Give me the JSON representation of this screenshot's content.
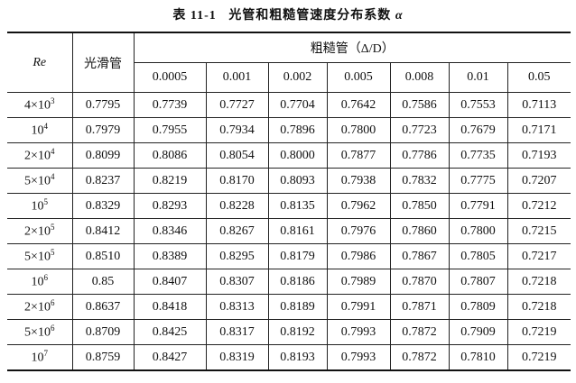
{
  "title": {
    "label": "表 11-1",
    "text": "光管和粗糙管速度分布系数",
    "symbol": "α"
  },
  "header": {
    "re": "Re",
    "smooth": "光滑管",
    "rough": "粗糙管（Δ/D）",
    "roughness": [
      "0.0005",
      "0.001",
      "0.002",
      "0.005",
      "0.008",
      "0.01",
      "0.05"
    ]
  },
  "rows": [
    {
      "re_coef": "4×10",
      "re_exp": "3",
      "values": [
        "0.7795",
        "0.7739",
        "0.7727",
        "0.7704",
        "0.7642",
        "0.7586",
        "0.7553",
        "0.7113"
      ]
    },
    {
      "re_coef": "10",
      "re_exp": "4",
      "values": [
        "0.7979",
        "0.7955",
        "0.7934",
        "0.7896",
        "0.7800",
        "0.7723",
        "0.7679",
        "0.7171"
      ]
    },
    {
      "re_coef": "2×10",
      "re_exp": "4",
      "values": [
        "0.8099",
        "0.8086",
        "0.8054",
        "0.8000",
        "0.7877",
        "0.7786",
        "0.7735",
        "0.7193"
      ]
    },
    {
      "re_coef": "5×10",
      "re_exp": "4",
      "values": [
        "0.8237",
        "0.8219",
        "0.8170",
        "0.8093",
        "0.7938",
        "0.7832",
        "0.7775",
        "0.7207"
      ]
    },
    {
      "re_coef": "10",
      "re_exp": "5",
      "values": [
        "0.8329",
        "0.8293",
        "0.8228",
        "0.8135",
        "0.7962",
        "0.7850",
        "0.7791",
        "0.7212"
      ]
    },
    {
      "re_coef": "2×10",
      "re_exp": "5",
      "values": [
        "0.8412",
        "0.8346",
        "0.8267",
        "0.8161",
        "0.7976",
        "0.7860",
        "0.7800",
        "0.7215"
      ]
    },
    {
      "re_coef": "5×10",
      "re_exp": "5",
      "values": [
        "0.8510",
        "0.8389",
        "0.8295",
        "0.8179",
        "0.7986",
        "0.7867",
        "0.7805",
        "0.7217"
      ]
    },
    {
      "re_coef": "10",
      "re_exp": "6",
      "values": [
        "0.85",
        "0.8407",
        "0.8307",
        "0.8186",
        "0.7989",
        "0.7870",
        "0.7807",
        "0.7218"
      ]
    },
    {
      "re_coef": "2×10",
      "re_exp": "6",
      "values": [
        "0.8637",
        "0.8418",
        "0.8313",
        "0.8189",
        "0.7991",
        "0.7871",
        "0.7809",
        "0.7218"
      ]
    },
    {
      "re_coef": "5×10",
      "re_exp": "6",
      "values": [
        "0.8709",
        "0.8425",
        "0.8317",
        "0.8192",
        "0.7993",
        "0.7872",
        "0.7909",
        "0.7219"
      ]
    },
    {
      "re_coef": "10",
      "re_exp": "7",
      "values": [
        "0.8759",
        "0.8427",
        "0.8319",
        "0.8193",
        "0.7993",
        "0.7872",
        "0.7810",
        "0.7219"
      ]
    }
  ]
}
